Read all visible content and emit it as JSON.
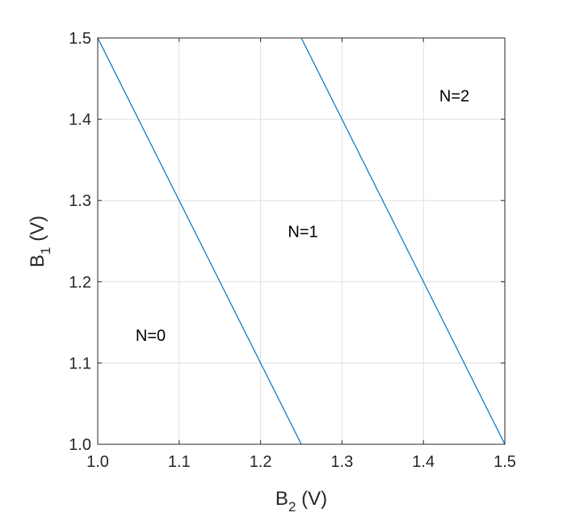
{
  "chart_data": {
    "type": "line",
    "xlabel": {
      "main": "B",
      "sub": "2",
      "unit": " (V)"
    },
    "ylabel": {
      "main": "B",
      "sub": "1",
      "unit": " (V)"
    },
    "xlim": [
      1.0,
      1.5
    ],
    "ylim": [
      1.0,
      1.5
    ],
    "xticks": [
      "1.0",
      "1.1",
      "1.2",
      "1.3",
      "1.4",
      "1.5"
    ],
    "yticks": [
      "1.0",
      "1.1",
      "1.2",
      "1.3",
      "1.4",
      "1.5"
    ],
    "grid": true,
    "series": [
      {
        "color": "#0072bd",
        "points": [
          [
            1.0,
            1.5
          ],
          [
            1.25,
            1.0
          ]
        ]
      },
      {
        "color": "#0072bd",
        "points": [
          [
            1.25,
            1.5
          ],
          [
            1.5,
            1.0
          ]
        ]
      }
    ],
    "annotations": [
      {
        "text": "N=0",
        "x": 1.065,
        "y": 1.127
      },
      {
        "text": "N=1",
        "x": 1.252,
        "y": 1.255
      },
      {
        "text": "N=2",
        "x": 1.438,
        "y": 1.422
      }
    ]
  }
}
